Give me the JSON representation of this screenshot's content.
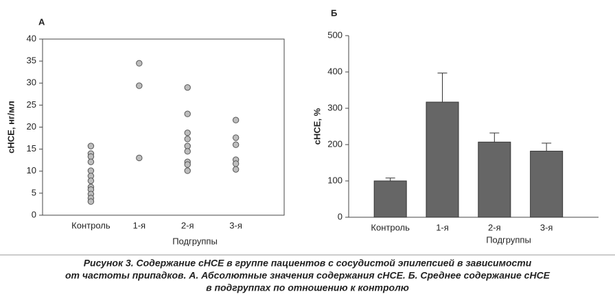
{
  "chart_data": [
    {
      "type": "strip",
      "panel": "А",
      "ylabel": "сНСЕ, нг/мл",
      "xlabel": "Подгруппы",
      "categories": [
        "Контроль",
        "1-я",
        "2-я",
        "3-я"
      ],
      "values": [
        [
          15.7,
          14,
          13.3,
          12.1,
          10.1,
          8.9,
          7.8,
          6.4,
          5.8,
          4.8,
          3.9,
          3.1
        ],
        [
          34.5,
          29.4,
          13
        ],
        [
          29,
          23,
          18.7,
          17.3,
          15.7,
          14.5,
          12.1,
          11.5,
          10.1
        ],
        [
          21.6,
          17.6,
          16,
          12.6,
          11.7,
          10.4
        ]
      ],
      "color": "#bdbdbd",
      "ylim": [
        0,
        40
      ],
      "yticks": [
        0,
        5,
        10,
        15,
        20,
        25,
        30,
        35,
        40
      ]
    },
    {
      "type": "bar",
      "panel": "Б",
      "ylabel": "сНСЕ, %",
      "xlabel": "Подгруппы",
      "categories": [
        "Контроль",
        "1-я",
        "2-я",
        "3-я"
      ],
      "values": [
        100,
        317,
        207,
        182
      ],
      "errors": [
        8,
        80,
        25,
        22
      ],
      "color": "#666666",
      "ylim": [
        0,
        500
      ],
      "yticks": [
        0,
        100,
        200,
        300,
        400,
        500
      ]
    }
  ],
  "caption": [
    "Рисунок 3. Содержание сНСЕ в группе пациентов с сосудистой эпилепсией в зависимости",
    "от частоты припадков. А. Абсолютные значения содержания сНСЕ. Б. Среднее содержание сНСЕ",
    "в подгруппах по отношению к контролю"
  ]
}
